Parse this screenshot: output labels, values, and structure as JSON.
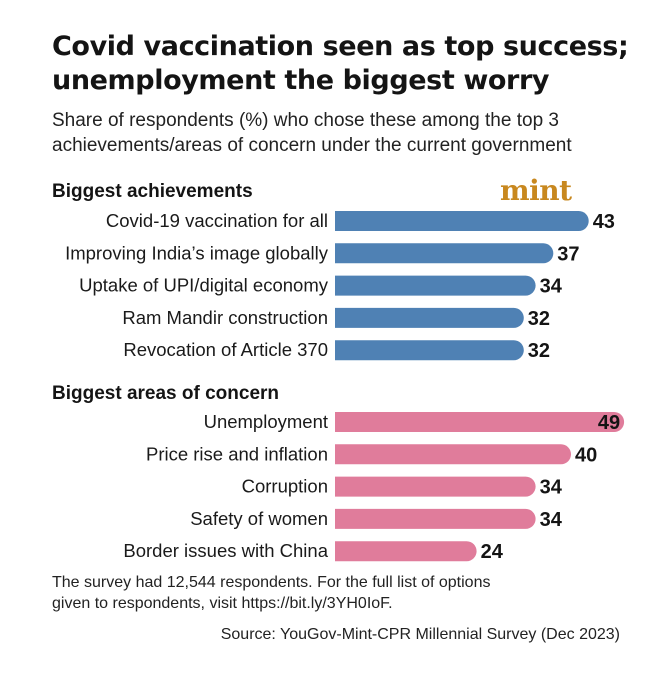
{
  "header": {
    "title_line1": "Covid vaccination seen as top success;",
    "title_line2": "unemployment the biggest worry",
    "subtitle_line1": "Share of respondents (%) who chose these among the top 3",
    "subtitle_line2": "achievements/areas of concern under the current government",
    "brand": "mint"
  },
  "colors": {
    "achievements": "#4f81b4",
    "concerns": "#e07c9b",
    "brand": "#c8881f"
  },
  "chart_data": [
    {
      "type": "bar",
      "orientation": "horizontal",
      "title": "Biggest achievements",
      "categories": [
        "Covid-19 vaccination for all",
        "Improving India’s image globally",
        "Uptake of UPI/digital economy",
        "Ram Mandir construction",
        "Revocation of Article 370"
      ],
      "values": [
        43,
        37,
        34,
        32,
        32
      ]
    },
    {
      "type": "bar",
      "orientation": "horizontal",
      "title": "Biggest areas of concern",
      "categories": [
        "Unemployment",
        "Price rise and inflation",
        "Corruption",
        "Safety of women",
        "Border issues with China"
      ],
      "values": [
        49,
        40,
        34,
        34,
        24
      ]
    }
  ],
  "footer": {
    "note_line1": "The survey had 12,544 respondents. For the full list of options",
    "note_line2": "given to respondents, visit https://bit.ly/3YH0IoF.",
    "source": "Source: YouGov-Mint-CPR Millennial Survey (Dec 2023)"
  }
}
